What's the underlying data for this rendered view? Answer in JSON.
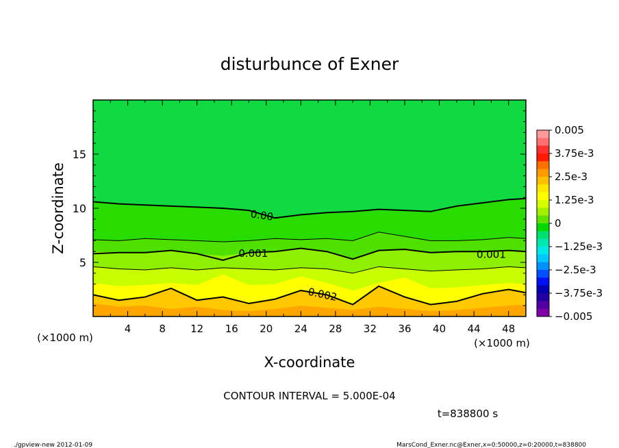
{
  "chart_data": {
    "type": "heatmap",
    "title": "disturbunce of Exner",
    "xlabel": "X-coordinate",
    "ylabel": "Z-coordinate",
    "x_unit_left": "(×1000 m)",
    "x_unit_right": "(×1000 m)",
    "xlim": [
      0,
      50
    ],
    "ylim": [
      0,
      20
    ],
    "x_ticks": [
      4,
      8,
      12,
      16,
      20,
      24,
      28,
      32,
      36,
      40,
      44,
      48
    ],
    "y_ticks": [
      5,
      10,
      15
    ],
    "contour_interval_text": "CONTOUR INTERVAL = 5.000E-04",
    "time_text": "t=838800 s",
    "contour_labels": [
      "0.00",
      "0.001",
      "0.001",
      "0.002"
    ],
    "colorbar": {
      "range": [
        -0.005,
        0.005
      ],
      "labels": [
        "0.005",
        "3.75e-3",
        "2.5e-3",
        "1.25e-3",
        "0",
        "−1.25e-3",
        "−2.5e-3",
        "−3.75e-3",
        "−0.005"
      ],
      "colors": [
        "#ff9999",
        "#ff7070",
        "#ff3030",
        "#ff1a00",
        "#ff7000",
        "#ff9a00",
        "#ffc000",
        "#ffe600",
        "#ffff00",
        "#d8ff00",
        "#a0f000",
        "#60e000",
        "#00d800",
        "#00e070",
        "#00e8b0",
        "#00e8e8",
        "#00c8ff",
        "#0090ff",
        "#0050ff",
        "#0010f0",
        "#0000b0",
        "#2000a0",
        "#5000a0",
        "#8000a8"
      ]
    },
    "bands_x": [
      0,
      3,
      6,
      9,
      12,
      15,
      18,
      21,
      24,
      27,
      30,
      33,
      36,
      39,
      42,
      45,
      48,
      50
    ],
    "bands": [
      {
        "value": 0.0025,
        "color": "#ffa500",
        "top": [
          1.2,
          0.9,
          1.0,
          0.7,
          0.9,
          0.6,
          0.5,
          0.7,
          1.0,
          0.8,
          0.6,
          0.9,
          0.7,
          0.5,
          0.6,
          0.8,
          1.0,
          1.1
        ]
      },
      {
        "value": 0.002,
        "color": "#ffc800",
        "top": [
          2.0,
          1.5,
          1.8,
          2.6,
          1.5,
          1.8,
          1.2,
          1.6,
          2.4,
          2.0,
          1.1,
          2.8,
          1.8,
          1.1,
          1.4,
          2.1,
          2.5,
          2.2
        ]
      },
      {
        "value": 0.0015,
        "color": "#ffff00",
        "top": [
          3.1,
          2.8,
          2.9,
          3.1,
          2.9,
          3.9,
          2.9,
          3.0,
          3.7,
          3.1,
          2.4,
          3.1,
          3.6,
          2.6,
          2.7,
          2.9,
          3.1,
          3.0
        ]
      },
      {
        "value": 0.001,
        "color": "#c8ff00",
        "top": [
          4.6,
          4.4,
          4.3,
          4.5,
          4.3,
          4.5,
          4.4,
          4.3,
          4.5,
          4.4,
          4.0,
          4.6,
          4.4,
          4.2,
          4.3,
          4.4,
          4.6,
          4.5
        ]
      },
      {
        "value": 0.0005,
        "color": "#8ef000",
        "top": [
          6.0,
          5.9,
          5.9,
          6.1,
          5.8,
          5.6,
          5.9,
          6.0,
          6.3,
          6.0,
          5.3,
          6.1,
          6.2,
          5.9,
          6.0,
          6.0,
          6.1,
          6.0
        ]
      },
      {
        "value": 0.00025,
        "color": "#50e000",
        "top": [
          7.1,
          7.0,
          7.2,
          7.1,
          7.0,
          6.9,
          7.0,
          7.2,
          7.1,
          7.2,
          7.0,
          7.8,
          7.4,
          7.0,
          7.0,
          7.1,
          7.3,
          7.2
        ]
      },
      {
        "value": 0.0,
        "color": "#28dc00",
        "top": [
          10.6,
          10.4,
          10.3,
          10.2,
          10.1,
          10.0,
          9.8,
          9.1,
          9.4,
          9.6,
          9.7,
          9.9,
          9.8,
          9.7,
          10.2,
          10.5,
          10.8,
          10.9
        ]
      },
      {
        "value": -0.0002,
        "color": "#10da40",
        "top": [
          20,
          20,
          20,
          20,
          20,
          20,
          20,
          20,
          20,
          20,
          20,
          20,
          20,
          20,
          20,
          20,
          20,
          20
        ]
      }
    ],
    "contour_lines_x": [
      0,
      3,
      6,
      9,
      12,
      15,
      18,
      21,
      24,
      27,
      30,
      33,
      36,
      39,
      42,
      45,
      48,
      50
    ],
    "contour_lines": [
      {
        "value": 0.0,
        "width": 2.0,
        "y": [
          10.6,
          10.4,
          10.3,
          10.2,
          10.1,
          10.0,
          9.8,
          9.1,
          9.4,
          9.6,
          9.7,
          9.9,
          9.8,
          9.7,
          10.2,
          10.5,
          10.8,
          10.9
        ]
      },
      {
        "value": 0.0005,
        "width": 1.0,
        "y": [
          7.1,
          7.0,
          7.2,
          7.1,
          7.0,
          6.9,
          7.0,
          7.2,
          7.1,
          7.2,
          7.0,
          7.8,
          7.4,
          7.0,
          7.0,
          7.1,
          7.3,
          7.2
        ]
      },
      {
        "value": 0.001,
        "width": 2.0,
        "y": [
          5.8,
          5.9,
          5.9,
          6.1,
          5.8,
          5.2,
          5.9,
          6.0,
          6.3,
          6.0,
          5.3,
          6.1,
          6.2,
          5.9,
          6.0,
          6.0,
          6.1,
          6.0
        ]
      },
      {
        "value": 0.0015,
        "width": 1.0,
        "y": [
          4.6,
          4.4,
          4.3,
          4.5,
          4.3,
          4.5,
          4.4,
          4.3,
          4.5,
          4.4,
          4.0,
          4.6,
          4.4,
          4.2,
          4.3,
          4.4,
          4.6,
          4.5
        ]
      },
      {
        "value": 0.002,
        "width": 2.0,
        "y": [
          2.0,
          1.5,
          1.8,
          2.6,
          1.5,
          1.8,
          1.2,
          1.6,
          2.4,
          2.0,
          1.1,
          2.8,
          1.8,
          1.1,
          1.4,
          2.1,
          2.5,
          2.2
        ]
      }
    ]
  },
  "footer": {
    "left": "./gpview-new   2012-01-09",
    "right": "MarsCond_Exner.nc@Exner,x=0:50000,z=0:20000,t=838800"
  }
}
